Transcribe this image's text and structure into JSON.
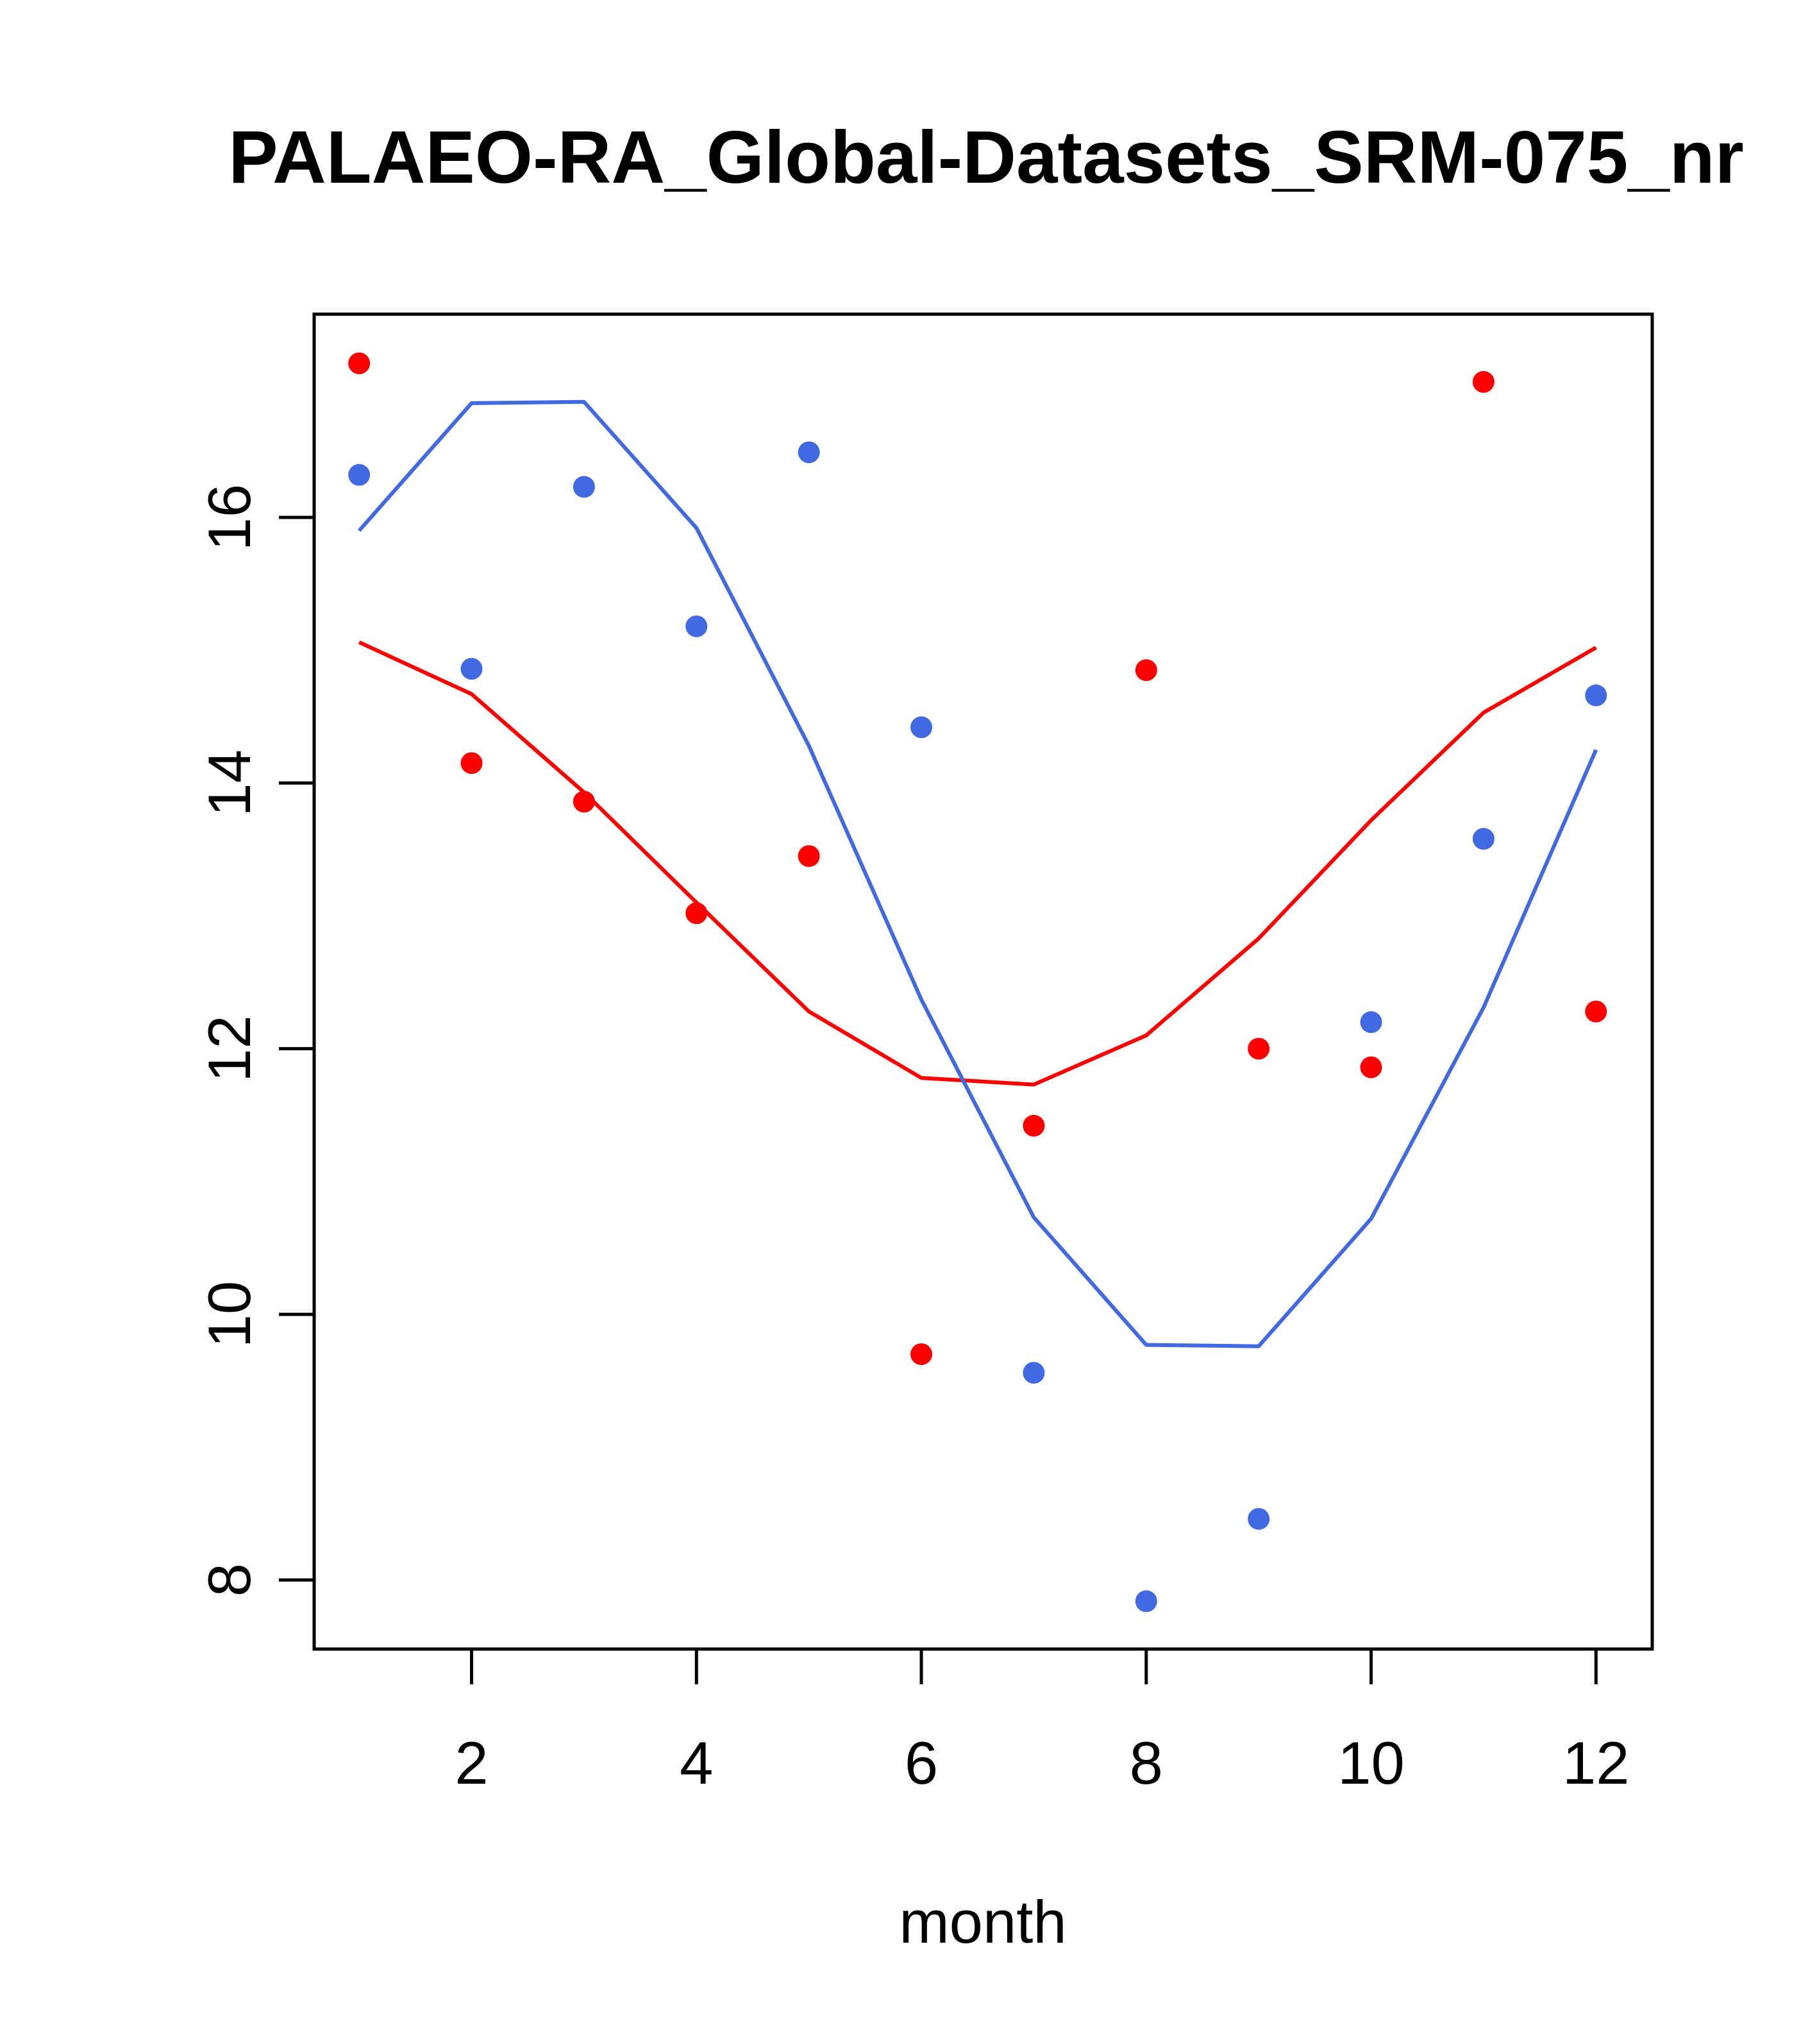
{
  "chart_data": {
    "type": "scatter",
    "title": "PALAEO-RA_Global-Datasets_SRM-075_nr",
    "xlabel": "month",
    "ylabel": "",
    "xlim": [
      0.6,
      12.5
    ],
    "ylim": [
      7.48,
      17.53
    ],
    "x_ticks": [
      2,
      4,
      6,
      8,
      10,
      12
    ],
    "y_ticks": [
      8,
      10,
      12,
      14,
      16
    ],
    "grid": false,
    "series": [
      {
        "name": "red points",
        "kind": "points",
        "color": "#FF0000",
        "x": [
          1,
          2,
          3,
          4,
          5,
          6,
          7,
          8,
          9,
          10,
          11,
          12
        ],
        "values": [
          17.16,
          14.15,
          13.86,
          13.02,
          13.45,
          9.7,
          11.42,
          14.85,
          12.0,
          11.86,
          17.02,
          12.28
        ]
      },
      {
        "name": "blue points",
        "kind": "points",
        "color": "#4169E1",
        "x": [
          1,
          2,
          3,
          4,
          5,
          6,
          7,
          8,
          9,
          10,
          11,
          12
        ],
        "values": [
          16.32,
          14.86,
          16.23,
          15.18,
          16.49,
          14.42,
          9.56,
          7.84,
          8.46,
          12.2,
          13.58,
          14.66
        ]
      },
      {
        "name": "red line",
        "kind": "line",
        "color": "#FF0000",
        "x": [
          1,
          2,
          3,
          4,
          5,
          6,
          7,
          8,
          9,
          10,
          11,
          12
        ],
        "values": [
          15.06,
          14.67,
          13.93,
          13.1,
          12.28,
          11.78,
          11.73,
          12.1,
          12.83,
          13.72,
          14.53,
          15.02
        ]
      },
      {
        "name": "blue line",
        "kind": "line",
        "color": "#4169E1",
        "x": [
          1,
          2,
          3,
          4,
          5,
          6,
          7,
          8,
          9,
          10,
          11,
          12
        ],
        "values": [
          15.9,
          16.86,
          16.87,
          15.92,
          14.28,
          12.37,
          10.73,
          9.77,
          9.76,
          10.72,
          12.31,
          14.25
        ]
      }
    ]
  }
}
